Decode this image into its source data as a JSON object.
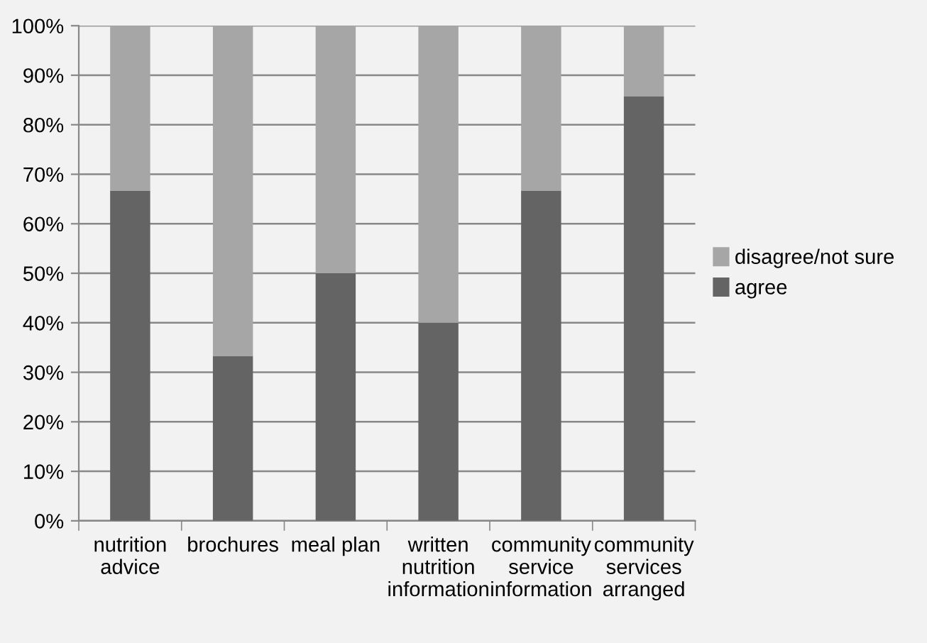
{
  "chart_data": {
    "type": "bar",
    "stacked": true,
    "categories": [
      "nutrition\nadvice",
      "brochures",
      "meal plan",
      "written\nnutrition\ninformation",
      "community\nservice\ninformation",
      "community\nservices\narranged"
    ],
    "series": [
      {
        "name": "agree",
        "color": "#646464",
        "values": [
          66.7,
          33.3,
          50,
          40,
          66.7,
          85.7
        ]
      },
      {
        "name": "disagree/not sure",
        "color": "#a6a6a6",
        "values": [
          33.3,
          66.7,
          50,
          60,
          33.3,
          14.3
        ]
      }
    ],
    "ylim": [
      0,
      100
    ],
    "yticks": [
      {
        "value": 0,
        "label": "0%"
      },
      {
        "value": 10,
        "label": "10%"
      },
      {
        "value": 20,
        "label": "20%"
      },
      {
        "value": 30,
        "label": "30%"
      },
      {
        "value": 40,
        "label": "40%"
      },
      {
        "value": 50,
        "label": "50%"
      },
      {
        "value": 60,
        "label": "60%"
      },
      {
        "value": 70,
        "label": "70%"
      },
      {
        "value": 80,
        "label": "80%"
      },
      {
        "value": 90,
        "label": "90%"
      },
      {
        "value": 100,
        "label": "100%"
      }
    ],
    "grid": "y",
    "legend": "right"
  }
}
